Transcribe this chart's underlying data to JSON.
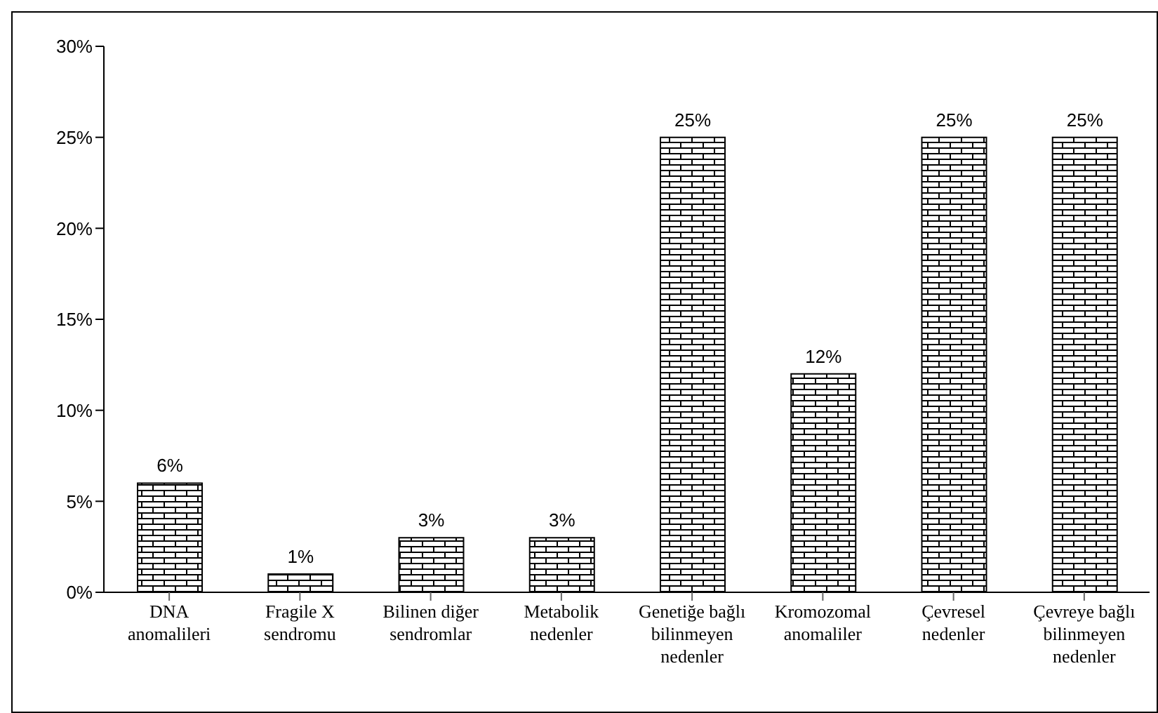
{
  "chart_data": {
    "type": "bar",
    "categories": [
      "DNA anomalileri",
      "Fragile X sendromu",
      "Bilinen diğer sendromlar",
      "Metabolik nedenler",
      "Genetiğe bağlı bilinmeyen nedenler",
      "Kromozomal anomaliler",
      "Çevresel nedenler",
      "Çevreye bağlı bilinmeyen nedenler"
    ],
    "values": [
      6,
      1,
      3,
      3,
      25,
      12,
      25,
      25
    ],
    "value_labels": [
      "6%",
      "1%",
      "3%",
      "3%",
      "25%",
      "12%",
      "25%",
      "25%"
    ],
    "color": "#000000",
    "ylim": [
      0,
      30
    ],
    "yticks": [
      {
        "value": 0,
        "label": "0%"
      },
      {
        "value": 5,
        "label": "5%"
      },
      {
        "value": 10,
        "label": "10%"
      },
      {
        "value": 15,
        "label": "15%"
      },
      {
        "value": 20,
        "label": "20%"
      },
      {
        "value": 25,
        "label": "25%"
      },
      {
        "value": 30,
        "label": "30%"
      }
    ],
    "grid": false,
    "legend": false
  }
}
